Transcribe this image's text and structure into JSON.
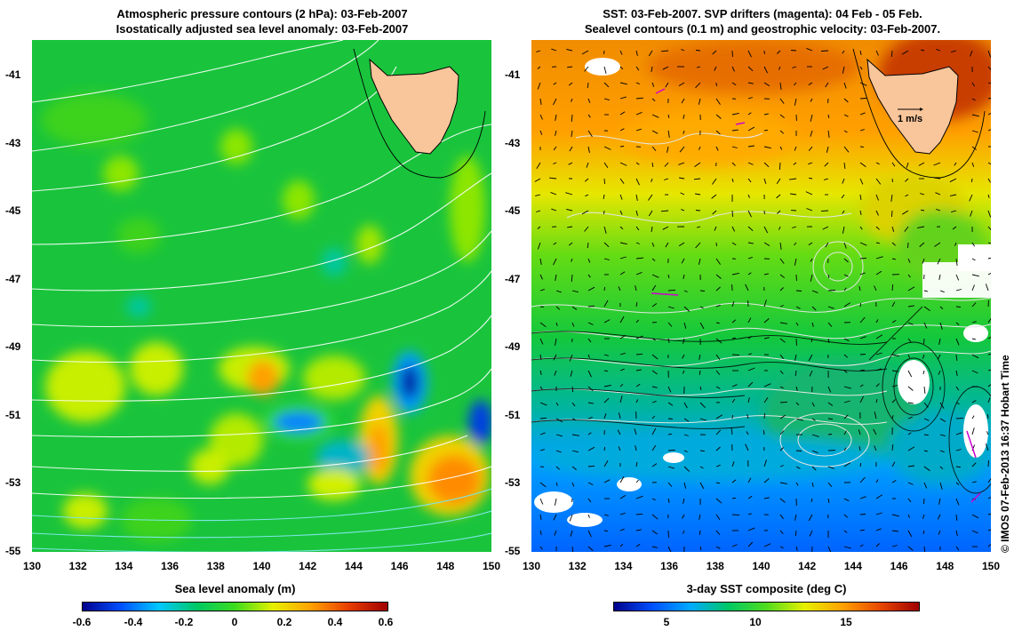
{
  "left_panel": {
    "title_line1": "Atmospheric pressure contours (2 hPa): 03-Feb-2007",
    "title_line2": "Isostatically adjusted sea level anomaly: 03-Feb-2007",
    "colorbar_label": "Sea level anomaly (m)",
    "colorbar_ticks": [
      "-0.6",
      "-0.4",
      "-0.2",
      "0",
      "0.2",
      "0.4",
      "0.6"
    ]
  },
  "right_panel": {
    "title_line1": "SST: 03-Feb-2007. SVP drifters (magenta): 04 Feb - 05 Feb.",
    "title_line2": "Sealevel contours (0.1 m) and geostrophic velocity: 03-Feb-2007.",
    "colorbar_label": "3-day SST composite (deg C)",
    "colorbar_ticks": [
      "5",
      "10",
      "15"
    ],
    "velocity_scale_label": "1 m/s"
  },
  "axes": {
    "lat_ticks": [
      "-41",
      "-43",
      "-45",
      "-47",
      "-49",
      "-51",
      "-53",
      "-55"
    ],
    "lon_ticks": [
      "130",
      "132",
      "134",
      "136",
      "138",
      "140",
      "142",
      "144",
      "146",
      "148",
      "150"
    ]
  },
  "credit": "© IMOS 07-Feb-2013 16:37 Hobart Time",
  "colors": {
    "land": "#f9c59a",
    "sla_gradient": [
      "#00008c",
      "#0050ff",
      "#00c8ff",
      "#00c864",
      "#3cdc1e",
      "#e6f000",
      "#ffa000",
      "#e63c00",
      "#a00000"
    ],
    "sst_gradient": [
      "#00008c",
      "#0050ff",
      "#00aaff",
      "#00c864",
      "#50dc1e",
      "#e6f000",
      "#ffa000",
      "#e64600",
      "#a00000"
    ]
  }
}
